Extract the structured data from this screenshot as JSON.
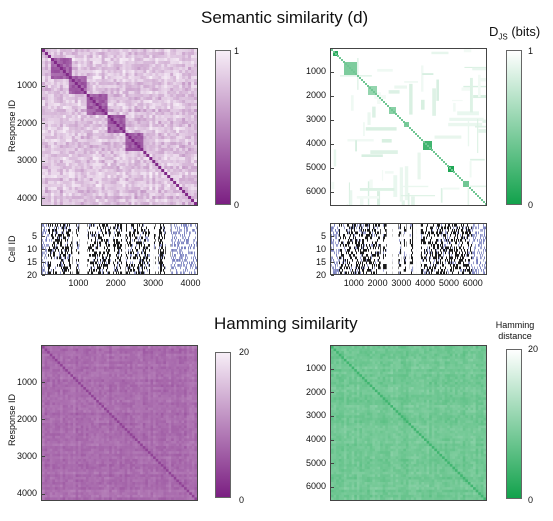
{
  "titles": {
    "semantic": "Semantic similarity (d)",
    "hamming": "Hamming similarity",
    "djs_main": "D",
    "djs_sub": "JS",
    "djs_unit": " (bits)",
    "hamming_cbar_line1": "Hamming",
    "hamming_cbar_line2": "distance"
  },
  "colors": {
    "purple_dark": "#7b1f82",
    "purple_light": "#f7eef7",
    "green_dark": "#12a24c",
    "green_light": "#ffffff",
    "raster_blue": "#6a72b8"
  },
  "chart_data": [
    {
      "id": "semantic-heatmap",
      "type": "heatmap",
      "ylabel": "Response ID",
      "yticks": [
        "1000",
        "2000",
        "3000",
        "4000"
      ],
      "ytick_values": [
        1000,
        2000,
        3000,
        4000
      ],
      "extent": [
        0,
        4200
      ],
      "colormap": "purple",
      "colorbar_ticks": [
        "1",
        "0"
      ],
      "clim": [
        0,
        1
      ]
    },
    {
      "id": "djs-heatmap",
      "type": "heatmap",
      "ylabel": "",
      "yticks": [
        "1000",
        "2000",
        "3000",
        "4000",
        "5000",
        "6000"
      ],
      "ytick_values": [
        1000,
        2000,
        3000,
        4000,
        5000,
        6000
      ],
      "extent": [
        0,
        6600
      ],
      "colormap": "green",
      "colorbar_ticks": [
        "1",
        "0"
      ],
      "clim": [
        0,
        1
      ]
    },
    {
      "id": "raster-semantic",
      "type": "heatmap",
      "ylabel": "Cell ID",
      "yticks": [
        "5",
        "10",
        "15",
        "20"
      ],
      "ytick_values": [
        5,
        10,
        15,
        20
      ],
      "xticks": [
        "1000",
        "2000",
        "3000",
        "4000"
      ],
      "xtick_values": [
        1000,
        2000,
        3000,
        4000
      ],
      "xlim": [
        0,
        4200
      ],
      "ylim": [
        0,
        20
      ]
    },
    {
      "id": "raster-djs",
      "type": "heatmap",
      "ylabel": "",
      "yticks": [
        "5",
        "10",
        "15",
        "20"
      ],
      "ytick_values": [
        5,
        10,
        15,
        20
      ],
      "xticks": [
        "1000",
        "2000",
        "3000",
        "4000",
        "5000",
        "6000"
      ],
      "xtick_values": [
        1000,
        2000,
        3000,
        4000,
        5000,
        6000
      ],
      "xlim": [
        0,
        6600
      ],
      "ylim": [
        0,
        20
      ]
    },
    {
      "id": "hamming-purple",
      "type": "heatmap",
      "ylabel": "Response ID",
      "yticks": [
        "1000",
        "2000",
        "3000",
        "4000"
      ],
      "ytick_values": [
        1000,
        2000,
        3000,
        4000
      ],
      "extent": [
        0,
        4200
      ],
      "colormap": "purple",
      "colorbar_ticks": [
        "20",
        "0"
      ],
      "clim": [
        0,
        20
      ]
    },
    {
      "id": "hamming-green",
      "type": "heatmap",
      "ylabel": "",
      "yticks": [
        "1000",
        "2000",
        "3000",
        "4000",
        "5000",
        "6000"
      ],
      "ytick_values": [
        1000,
        2000,
        3000,
        4000,
        5000,
        6000
      ],
      "extent": [
        0,
        6600
      ],
      "colormap": "green",
      "colorbar_ticks": [
        "20",
        "0"
      ],
      "clim": [
        0,
        20
      ]
    }
  ]
}
